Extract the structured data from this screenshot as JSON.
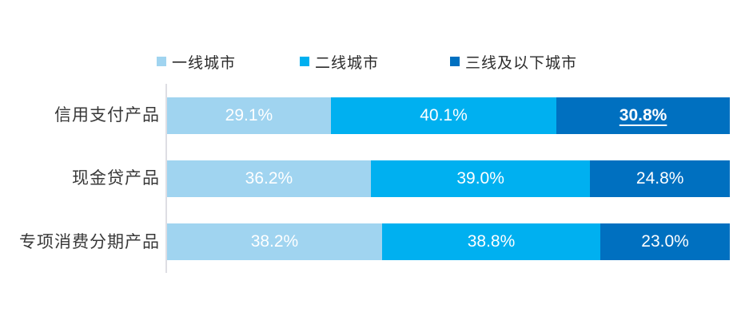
{
  "chart_data": {
    "type": "bar",
    "orientation": "horizontal",
    "stacked": true,
    "unit": "%",
    "xlim": [
      0,
      100
    ],
    "legend_position": "top",
    "grid": false,
    "categories": [
      "信用支付产品",
      "现金贷产品",
      "专项消费分期产品"
    ],
    "series": [
      {
        "name": "一线城市",
        "color": "#a0d4f0",
        "values": [
          29.1,
          36.2,
          38.2
        ]
      },
      {
        "name": "二线城市",
        "color": "#00b0f0",
        "values": [
          40.1,
          39.0,
          38.8
        ]
      },
      {
        "name": "三线及以下城市",
        "color": "#0070c0",
        "values": [
          30.8,
          24.8,
          23.0
        ]
      }
    ],
    "value_labels": [
      [
        "29.1%",
        "40.1%",
        "30.8%"
      ],
      [
        "36.2%",
        "39.0%",
        "24.8%"
      ],
      [
        "38.2%",
        "38.8%",
        "23.0%"
      ]
    ],
    "highlight": {
      "category_index": 0,
      "series_index": 2,
      "label": "30.8%",
      "style": "bold-underline"
    }
  },
  "colors": {
    "axis_line": "#dedee4",
    "category_text": "#383838",
    "value_text": "#ffffff",
    "background": "#ffffff"
  }
}
